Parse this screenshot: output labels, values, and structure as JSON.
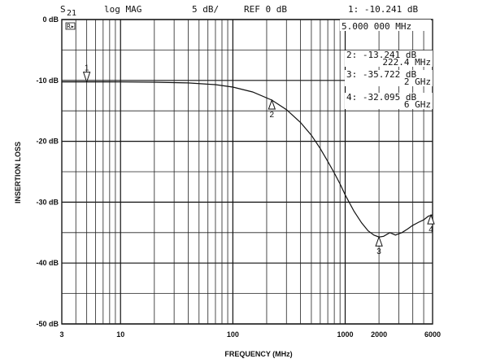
{
  "header": {
    "param": "S",
    "param_sub": "21",
    "format": "log MAG",
    "scale": "5 dB/",
    "ref": "REF 0 dB",
    "active_marker": "1: -10.241 dB",
    "active_freq": "5.000 000 MHz",
    "ref_indicator": "R▸"
  },
  "marker_readouts": [
    {
      "id": "2",
      "value": "2: -13.241 dB",
      "freq": "222.4 MHz"
    },
    {
      "id": "3",
      "value": "3: -35.722 dB",
      "freq": "2 GHz"
    },
    {
      "id": "4",
      "value": "4: -32.095 dB",
      "freq": "6 GHz"
    }
  ],
  "chart_data": {
    "type": "line",
    "xlabel": "FREQUENCY (MHz)",
    "ylabel": "INSERTION LOSS",
    "x_scale": "log",
    "xlim": [
      3,
      6000
    ],
    "ylim": [
      -50,
      0
    ],
    "x_tick_labels": [
      "3",
      "10",
      "100",
      "1000",
      "2000",
      "6000"
    ],
    "x_ticks": [
      3,
      10,
      100,
      1000,
      2000,
      6000
    ],
    "y_ticks": [
      0,
      -10,
      -20,
      -30,
      -40,
      -50
    ],
    "y_tick_labels": [
      "0 dB",
      "-10 dB",
      "-20 dB",
      "-30 dB",
      "-40 dB",
      "-50 dB"
    ],
    "grid": true,
    "series": [
      {
        "x": [
          3,
          5,
          10,
          20,
          40,
          70,
          100,
          150,
          222.4,
          300,
          400,
          500,
          600,
          700,
          800,
          900,
          1000,
          1200,
          1400,
          1600,
          1800,
          2000,
          2200,
          2500,
          2800,
          3200,
          3600,
          4000,
          4500,
          5000,
          5500,
          6000
        ],
        "y": [
          -10.24,
          -10.24,
          -10.26,
          -10.3,
          -10.42,
          -10.7,
          -11.1,
          -11.9,
          -13.24,
          -14.8,
          -16.9,
          -19.0,
          -21.2,
          -23.3,
          -25.2,
          -27.0,
          -28.8,
          -31.5,
          -33.4,
          -34.7,
          -35.4,
          -35.72,
          -35.6,
          -35.0,
          -35.4,
          -35.0,
          -34.4,
          -33.8,
          -33.3,
          -32.9,
          -32.3,
          -32.1
        ]
      }
    ],
    "markers": [
      {
        "label": "1",
        "x": 5,
        "y": -10.241
      },
      {
        "label": "2",
        "x": 222.4,
        "y": -13.241
      },
      {
        "label": "3",
        "x": 2000,
        "y": -35.722
      },
      {
        "label": "4",
        "x": 6000,
        "y": -32.095
      }
    ]
  }
}
